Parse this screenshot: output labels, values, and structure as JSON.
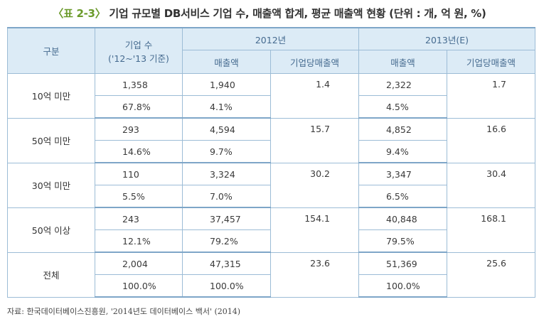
{
  "title": {
    "tag": "〈표 2-3〉",
    "text": "기업 규모별 DB서비스 기업 수, 매출액 합계, 평균 매출액 현황 (단위 : 개, 억 원, %)"
  },
  "table": {
    "headers": {
      "gubun": "구분",
      "company_count_line1": "기업 수",
      "company_count_line2": "('12~'13 기준)",
      "year_2012": "2012년",
      "year_2013": "2013년(E)",
      "sales": "매출액",
      "avg_sales": "기업당매출액",
      "sales_2013": "매출액",
      "avg_sales_2013": "기업당매출액"
    },
    "groups": [
      {
        "label": "10억 미만",
        "count": "1,358",
        "count_pct": "67.8%",
        "sales_2012": "1,940",
        "sales_2012_pct": "4.1%",
        "avg_2012": "1.4",
        "sales_2013": "2,322",
        "sales_2013_pct": "4.5%",
        "avg_2013": "1.7"
      },
      {
        "label": "50억 미만",
        "count": "293",
        "count_pct": "14.6%",
        "sales_2012": "4,594",
        "sales_2012_pct": "9.7%",
        "avg_2012": "15.7",
        "sales_2013": "4,852",
        "sales_2013_pct": "9.4%",
        "avg_2013": "16.6"
      },
      {
        "label": "30억 미만",
        "count": "110",
        "count_pct": "5.5%",
        "sales_2012": "3,324",
        "sales_2012_pct": "7.0%",
        "avg_2012": "30.2",
        "sales_2013": "3,347",
        "sales_2013_pct": "6.5%",
        "avg_2013": "30.4"
      },
      {
        "label": "50억 이상",
        "count": "243",
        "count_pct": "12.1%",
        "sales_2012": "37,457",
        "sales_2012_pct": "79.2%",
        "avg_2012": "154.1",
        "sales_2013": "40,848",
        "sales_2013_pct": "79.5%",
        "avg_2013": "168.1"
      },
      {
        "label": "전체",
        "count": "2,004",
        "count_pct": "100.0%",
        "sales_2012": "47,315",
        "sales_2012_pct": "100.0%",
        "avg_2012": "23.6",
        "sales_2013": "51,369",
        "sales_2013_pct": "100.0%",
        "avg_2013": "25.6"
      }
    ]
  },
  "source": "자료: 한국데이터베이스진흥원, '2014년도 데이터베이스 백서' (2014)",
  "colors": {
    "header_bg": "#dcebf6",
    "header_text": "#456a8f",
    "border": "#9cbcd6",
    "tag": "#6a9a2a"
  }
}
